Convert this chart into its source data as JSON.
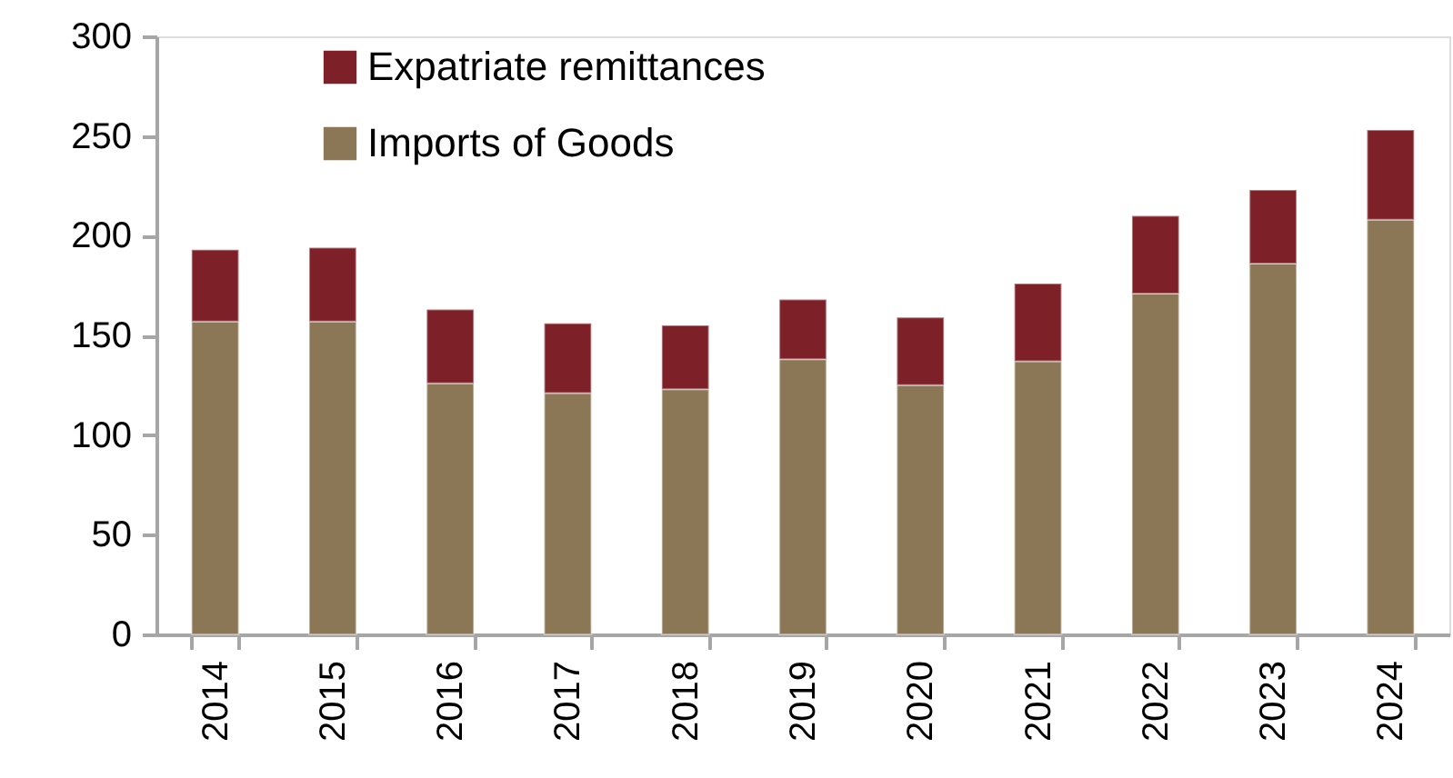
{
  "chart_data": {
    "type": "bar",
    "stacked": true,
    "categories": [
      "2014",
      "2015",
      "2016",
      "2017",
      "2018",
      "2019",
      "2020",
      "2021",
      "2022",
      "2023",
      "2024"
    ],
    "series": [
      {
        "name": "Imports of Goods",
        "color": "#8b7755",
        "values": [
          157,
          157,
          126,
          121,
          123,
          138,
          125,
          137,
          171,
          186,
          208
        ]
      },
      {
        "name": "Expatriate remittances",
        "color": "#7e2028",
        "values": [
          36,
          37,
          37,
          35,
          32,
          30,
          34,
          39,
          39,
          37,
          45
        ]
      }
    ],
    "ylim": [
      0,
      300
    ],
    "yticks": [
      0,
      50,
      100,
      150,
      200,
      250,
      300
    ],
    "grid": false,
    "legend": "top left"
  }
}
